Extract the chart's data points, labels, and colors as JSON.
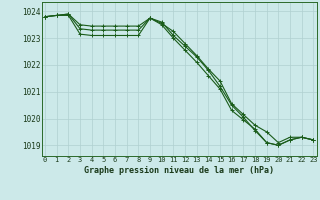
{
  "title": "Graphe pression niveau de la mer (hPa)",
  "ylabel_ticks": [
    1019,
    1020,
    1021,
    1022,
    1023,
    1024
  ],
  "ylim": [
    1018.6,
    1024.35
  ],
  "xlim": [
    -0.3,
    23.3
  ],
  "bg_color": "#cce9e9",
  "line_color": "#1a5c1a",
  "grid_color": "#b0d0d0",
  "line1": [
    1023.8,
    1023.85,
    1023.9,
    1023.5,
    1023.45,
    1023.45,
    1023.45,
    1023.45,
    1023.45,
    1023.75,
    1023.55,
    1023.25,
    1022.8,
    1022.35,
    1021.85,
    1021.4,
    1020.55,
    1020.15,
    1019.75,
    1019.5,
    1019.1,
    1019.3,
    1019.3,
    1019.2
  ],
  "line2": [
    1023.8,
    1023.85,
    1023.9,
    1023.35,
    1023.3,
    1023.3,
    1023.3,
    1023.3,
    1023.3,
    1023.75,
    1023.5,
    1023.0,
    1022.55,
    1022.1,
    1021.6,
    1021.1,
    1020.3,
    1019.95,
    1019.6,
    1019.1,
    1019.0,
    1019.2,
    1019.3,
    1019.2
  ],
  "line3": [
    1023.8,
    1023.85,
    1023.85,
    1023.15,
    1023.1,
    1023.1,
    1023.1,
    1023.1,
    1023.1,
    1023.75,
    1023.6,
    1023.1,
    1022.7,
    1022.3,
    1021.8,
    1021.2,
    1020.5,
    1020.05,
    1019.55,
    1019.1,
    1019.0,
    1019.2,
    1019.3,
    1019.2
  ]
}
